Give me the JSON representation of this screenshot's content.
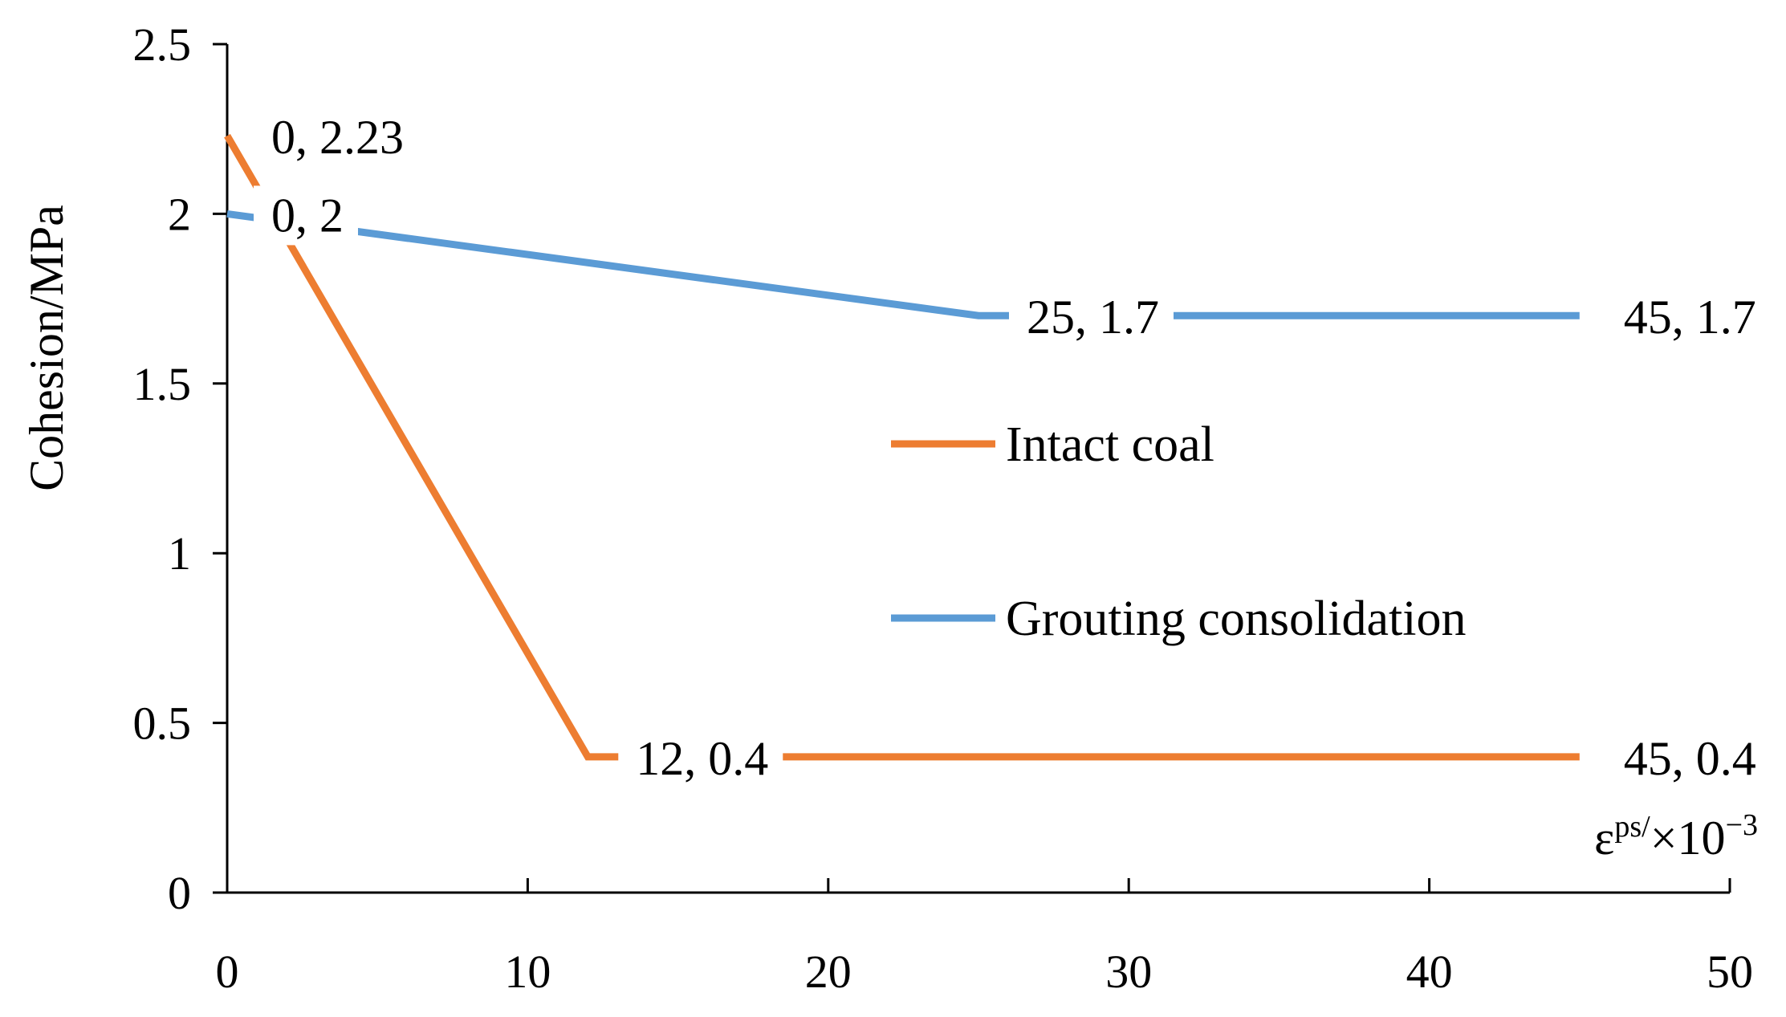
{
  "chart_data": {
    "type": "line",
    "title": "",
    "xlabel": {
      "symbol": "ε",
      "superscript": "ps/",
      "multiplier": "×10",
      "exponent": "−3"
    },
    "ylabel": "Cohesion/MPa",
    "xlim": [
      0,
      50
    ],
    "ylim": [
      0,
      2.5
    ],
    "xticks": [
      0,
      10,
      20,
      30,
      40,
      50
    ],
    "yticks": [
      0,
      0.5,
      1,
      1.5,
      2,
      2.5
    ],
    "xtick_labels": [
      "0",
      "10",
      "20",
      "30",
      "40",
      "50"
    ],
    "ytick_labels": [
      "0",
      "0.5",
      "1",
      "1.5",
      "2",
      "2.5"
    ],
    "grid": false,
    "legend_position": "center-right",
    "series": [
      {
        "name": "Intact coal",
        "color": "#ED7D31",
        "points": [
          {
            "x": 0,
            "y": 2.23,
            "label": "0, 2.23"
          },
          {
            "x": 12,
            "y": 0.4,
            "label": "12, 0.4"
          },
          {
            "x": 45,
            "y": 0.4,
            "label": "45, 0.4"
          }
        ]
      },
      {
        "name": "Grouting consolidation",
        "color": "#5B9BD5",
        "points": [
          {
            "x": 0,
            "y": 2,
            "label": "0, 2"
          },
          {
            "x": 25,
            "y": 1.7,
            "label": "25, 1.7"
          },
          {
            "x": 45,
            "y": 1.7,
            "label": "45, 1.7"
          }
        ]
      }
    ]
  }
}
